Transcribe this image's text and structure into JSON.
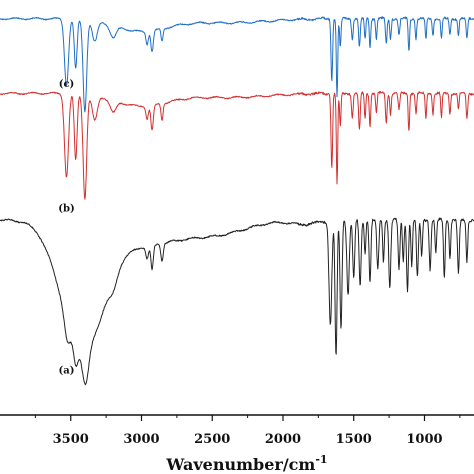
{
  "chart_data": {
    "type": "line",
    "xlabel": "Wavenumber/cm",
    "xlabel_superscript": "-1",
    "xlim": [
      4000,
      650
    ],
    "x_reversed": true,
    "xticks": [
      3500,
      3000,
      2500,
      2000,
      1500,
      1000
    ],
    "xtick_labels": [
      "3500",
      "3000",
      "2500",
      "2000",
      "1500",
      "1000"
    ],
    "grid": false,
    "legend": "none",
    "annotations": [
      "(a)",
      "(b)",
      "(c)"
    ],
    "series": [
      {
        "color": "#222222",
        "label": "(a)",
        "baseline": 0.47,
        "noise": 0.006,
        "wiggle": 0.002,
        "broad": [
          {
            "x": 3420,
            "w": 210,
            "d": 0.3
          },
          {
            "x": 3000,
            "w": 380,
            "d": 0.06
          },
          {
            "x": 2450,
            "w": 300,
            "d": 0.03
          },
          {
            "x": 1850,
            "w": 140,
            "d": 0.01
          }
        ],
        "peaks": [
          {
            "x": 3525,
            "w": 28,
            "d": 0.05
          },
          {
            "x": 3465,
            "w": 22,
            "d": 0.05
          },
          {
            "x": 3395,
            "w": 30,
            "d": 0.08
          },
          {
            "x": 3200,
            "w": 40,
            "d": 0.03
          },
          {
            "x": 2960,
            "w": 14,
            "d": 0.03
          },
          {
            "x": 2925,
            "w": 12,
            "d": 0.06
          },
          {
            "x": 2855,
            "w": 12,
            "d": 0.04
          },
          {
            "x": 1665,
            "w": 14,
            "d": 0.25
          },
          {
            "x": 1625,
            "w": 10,
            "d": 0.33
          },
          {
            "x": 1590,
            "w": 10,
            "d": 0.26
          },
          {
            "x": 1540,
            "w": 12,
            "d": 0.18
          },
          {
            "x": 1500,
            "w": 10,
            "d": 0.14
          },
          {
            "x": 1455,
            "w": 10,
            "d": 0.16
          },
          {
            "x": 1420,
            "w": 8,
            "d": 0.08
          },
          {
            "x": 1385,
            "w": 9,
            "d": 0.15
          },
          {
            "x": 1330,
            "w": 10,
            "d": 0.12
          },
          {
            "x": 1290,
            "w": 8,
            "d": 0.1
          },
          {
            "x": 1245,
            "w": 10,
            "d": 0.16
          },
          {
            "x": 1180,
            "w": 9,
            "d": 0.12
          },
          {
            "x": 1150,
            "w": 8,
            "d": 0.1
          },
          {
            "x": 1120,
            "w": 9,
            "d": 0.17
          },
          {
            "x": 1090,
            "w": 8,
            "d": 0.11
          },
          {
            "x": 1050,
            "w": 9,
            "d": 0.14
          },
          {
            "x": 1020,
            "w": 8,
            "d": 0.09
          },
          {
            "x": 960,
            "w": 9,
            "d": 0.12
          },
          {
            "x": 920,
            "w": 8,
            "d": 0.08
          },
          {
            "x": 860,
            "w": 8,
            "d": 0.14
          },
          {
            "x": 820,
            "w": 8,
            "d": 0.09
          },
          {
            "x": 760,
            "w": 9,
            "d": 0.13
          },
          {
            "x": 700,
            "w": 8,
            "d": 0.1
          }
        ]
      },
      {
        "color": "#d32f2f",
        "label": "(b)",
        "baseline": 0.775,
        "noise": 0.005,
        "wiggle": 0.002,
        "broad": [
          {
            "x": 3000,
            "w": 260,
            "d": 0.03
          },
          {
            "x": 2400,
            "w": 400,
            "d": 0.01
          }
        ],
        "peaks": [
          {
            "x": 3530,
            "w": 20,
            "d": 0.2
          },
          {
            "x": 3465,
            "w": 14,
            "d": 0.16
          },
          {
            "x": 3400,
            "w": 18,
            "d": 0.25
          },
          {
            "x": 3330,
            "w": 25,
            "d": 0.06
          },
          {
            "x": 3200,
            "w": 30,
            "d": 0.03
          },
          {
            "x": 2960,
            "w": 12,
            "d": 0.03
          },
          {
            "x": 2925,
            "w": 12,
            "d": 0.06
          },
          {
            "x": 2855,
            "w": 10,
            "d": 0.04
          },
          {
            "x": 1655,
            "w": 8,
            "d": 0.18
          },
          {
            "x": 1618,
            "w": 7,
            "d": 0.22
          },
          {
            "x": 1595,
            "w": 7,
            "d": 0.08
          },
          {
            "x": 1510,
            "w": 8,
            "d": 0.06
          },
          {
            "x": 1460,
            "w": 8,
            "d": 0.09
          },
          {
            "x": 1420,
            "w": 7,
            "d": 0.06
          },
          {
            "x": 1385,
            "w": 7,
            "d": 0.08
          },
          {
            "x": 1340,
            "w": 7,
            "d": 0.05
          },
          {
            "x": 1270,
            "w": 8,
            "d": 0.07
          },
          {
            "x": 1240,
            "w": 7,
            "d": 0.05
          },
          {
            "x": 1180,
            "w": 8,
            "d": 0.04
          },
          {
            "x": 1110,
            "w": 7,
            "d": 0.09
          },
          {
            "x": 1060,
            "w": 7,
            "d": 0.05
          },
          {
            "x": 990,
            "w": 7,
            "d": 0.06
          },
          {
            "x": 940,
            "w": 7,
            "d": 0.05
          },
          {
            "x": 880,
            "w": 7,
            "d": 0.06
          },
          {
            "x": 820,
            "w": 7,
            "d": 0.05
          },
          {
            "x": 760,
            "w": 7,
            "d": 0.04
          },
          {
            "x": 700,
            "w": 8,
            "d": 0.06
          }
        ]
      },
      {
        "color": "#1f6fc5",
        "label": "(c)",
        "baseline": 0.955,
        "noise": 0.005,
        "wiggle": 0.002,
        "broad": [
          {
            "x": 3000,
            "w": 260,
            "d": 0.03
          },
          {
            "x": 2400,
            "w": 400,
            "d": 0.01
          }
        ],
        "peaks": [
          {
            "x": 3530,
            "w": 20,
            "d": 0.16
          },
          {
            "x": 3465,
            "w": 14,
            "d": 0.12
          },
          {
            "x": 3400,
            "w": 18,
            "d": 0.22
          },
          {
            "x": 3330,
            "w": 25,
            "d": 0.05
          },
          {
            "x": 3200,
            "w": 30,
            "d": 0.03
          },
          {
            "x": 2960,
            "w": 12,
            "d": 0.03
          },
          {
            "x": 2925,
            "w": 12,
            "d": 0.05
          },
          {
            "x": 2855,
            "w": 10,
            "d": 0.03
          },
          {
            "x": 1655,
            "w": 8,
            "d": 0.15
          },
          {
            "x": 1618,
            "w": 7,
            "d": 0.19
          },
          {
            "x": 1595,
            "w": 7,
            "d": 0.07
          },
          {
            "x": 1510,
            "w": 8,
            "d": 0.05
          },
          {
            "x": 1460,
            "w": 8,
            "d": 0.07
          },
          {
            "x": 1420,
            "w": 7,
            "d": 0.05
          },
          {
            "x": 1385,
            "w": 7,
            "d": 0.07
          },
          {
            "x": 1340,
            "w": 7,
            "d": 0.05
          },
          {
            "x": 1270,
            "w": 8,
            "d": 0.06
          },
          {
            "x": 1240,
            "w": 7,
            "d": 0.05
          },
          {
            "x": 1180,
            "w": 8,
            "d": 0.04
          },
          {
            "x": 1110,
            "w": 7,
            "d": 0.08
          },
          {
            "x": 1060,
            "w": 7,
            "d": 0.05
          },
          {
            "x": 990,
            "w": 7,
            "d": 0.05
          },
          {
            "x": 940,
            "w": 7,
            "d": 0.04
          },
          {
            "x": 880,
            "w": 7,
            "d": 0.05
          },
          {
            "x": 820,
            "w": 7,
            "d": 0.04
          },
          {
            "x": 760,
            "w": 7,
            "d": 0.04
          },
          {
            "x": 700,
            "w": 8,
            "d": 0.05
          }
        ]
      }
    ]
  }
}
